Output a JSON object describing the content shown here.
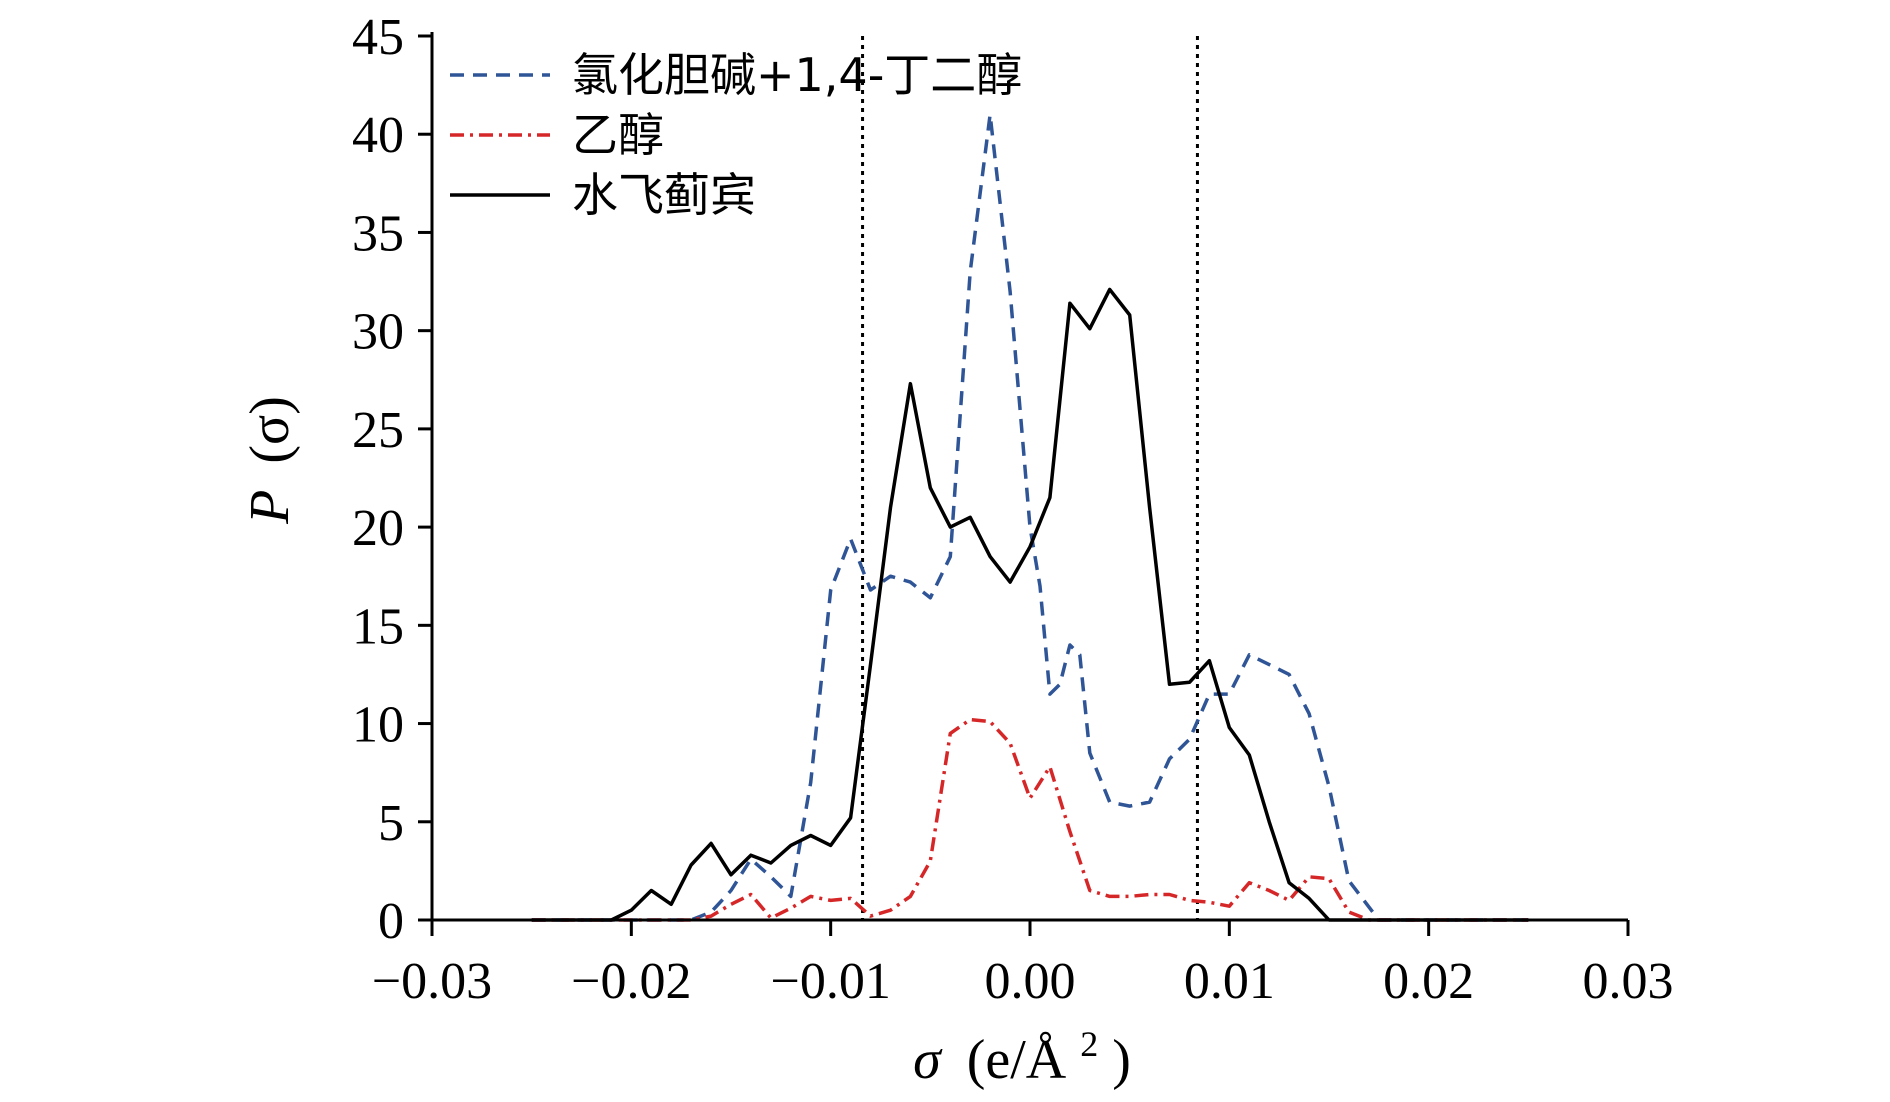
{
  "chart_data": {
    "type": "line",
    "xlabel_main": "σ",
    "xlabel_unit": "(e/Å",
    "xlabel_sup": "2",
    "xlabel_close": ")",
    "ylabel_main": "P",
    "ylabel_paren": "(σ)",
    "xlim": [
      -0.03,
      0.03
    ],
    "ylim": [
      0,
      45
    ],
    "x_ticks": [
      -0.03,
      -0.02,
      -0.01,
      0.0,
      0.01,
      0.02,
      0.03
    ],
    "x_tick_labels": [
      "−0.03",
      "−0.02",
      "−0.01",
      "0.00",
      "0.01",
      "0.02",
      "0.03"
    ],
    "y_ticks": [
      0,
      5,
      10,
      15,
      20,
      25,
      30,
      35,
      40,
      45
    ],
    "y_tick_labels": [
      "0",
      "5",
      "10",
      "15",
      "20",
      "25",
      "30",
      "35",
      "40",
      "45"
    ],
    "vlines": [
      -0.0084,
      0.0084
    ],
    "legend_position": "top-left",
    "series": [
      {
        "name": "氯化胆碱+1,4-丁二醇",
        "color": "#2f5597",
        "style": "dashed",
        "points": [
          [
            -0.025,
            0
          ],
          [
            -0.017,
            0
          ],
          [
            -0.016,
            0.4
          ],
          [
            -0.015,
            1.5
          ],
          [
            -0.014,
            3.1
          ],
          [
            -0.013,
            2.2
          ],
          [
            -0.012,
            1.2
          ],
          [
            -0.011,
            7.0
          ],
          [
            -0.01,
            16.8
          ],
          [
            -0.009,
            19.4
          ],
          [
            -0.008,
            16.8
          ],
          [
            -0.007,
            17.5
          ],
          [
            -0.006,
            17.2
          ],
          [
            -0.005,
            16.4
          ],
          [
            -0.004,
            18.5
          ],
          [
            -0.003,
            33.0
          ],
          [
            -0.002,
            41.0
          ],
          [
            -0.001,
            32.0
          ],
          [
            0.0,
            20.0
          ],
          [
            0.0005,
            17.0
          ],
          [
            0.001,
            11.5
          ],
          [
            0.0015,
            12.0
          ],
          [
            0.002,
            14.0
          ],
          [
            0.0025,
            13.5
          ],
          [
            0.003,
            8.5
          ],
          [
            0.004,
            6.0
          ],
          [
            0.005,
            5.8
          ],
          [
            0.006,
            6.0
          ],
          [
            0.007,
            8.2
          ],
          [
            0.008,
            9.2
          ],
          [
            0.009,
            11.5
          ],
          [
            0.01,
            11.5
          ],
          [
            0.011,
            13.5
          ],
          [
            0.012,
            13.0
          ],
          [
            0.013,
            12.5
          ],
          [
            0.014,
            10.5
          ],
          [
            0.015,
            6.8
          ],
          [
            0.016,
            2.0
          ],
          [
            0.0175,
            0
          ],
          [
            0.025,
            0
          ]
        ]
      },
      {
        "name": "乙醇",
        "color": "#d62728",
        "style": "dashdot",
        "points": [
          [
            -0.025,
            0
          ],
          [
            -0.017,
            0
          ],
          [
            -0.016,
            0.2
          ],
          [
            -0.015,
            0.8
          ],
          [
            -0.014,
            1.3
          ],
          [
            -0.013,
            0.1
          ],
          [
            -0.012,
            0.6
          ],
          [
            -0.011,
            1.2
          ],
          [
            -0.01,
            1.0
          ],
          [
            -0.009,
            1.1
          ],
          [
            -0.008,
            0.2
          ],
          [
            -0.007,
            0.5
          ],
          [
            -0.006,
            1.2
          ],
          [
            -0.005,
            3.0
          ],
          [
            -0.004,
            9.5
          ],
          [
            -0.003,
            10.2
          ],
          [
            -0.002,
            10.1
          ],
          [
            -0.001,
            9.0
          ],
          [
            0.0,
            6.2
          ],
          [
            0.001,
            7.8
          ],
          [
            0.002,
            4.5
          ],
          [
            0.003,
            1.5
          ],
          [
            0.004,
            1.2
          ],
          [
            0.005,
            1.2
          ],
          [
            0.006,
            1.3
          ],
          [
            0.007,
            1.3
          ],
          [
            0.008,
            1.0
          ],
          [
            0.009,
            0.9
          ],
          [
            0.01,
            0.7
          ],
          [
            0.011,
            1.9
          ],
          [
            0.012,
            1.5
          ],
          [
            0.013,
            1.0
          ],
          [
            0.014,
            2.2
          ],
          [
            0.015,
            2.1
          ],
          [
            0.016,
            0.4
          ],
          [
            0.017,
            0
          ],
          [
            0.025,
            0
          ]
        ]
      },
      {
        "name": "水飞蓟宾",
        "color": "#000000",
        "style": "solid",
        "points": [
          [
            -0.025,
            0
          ],
          [
            -0.021,
            0
          ],
          [
            -0.02,
            0.5
          ],
          [
            -0.019,
            1.5
          ],
          [
            -0.018,
            0.8
          ],
          [
            -0.017,
            2.8
          ],
          [
            -0.016,
            3.9
          ],
          [
            -0.015,
            2.3
          ],
          [
            -0.014,
            3.3
          ],
          [
            -0.013,
            2.9
          ],
          [
            -0.012,
            3.8
          ],
          [
            -0.011,
            4.3
          ],
          [
            -0.01,
            3.8
          ],
          [
            -0.009,
            5.2
          ],
          [
            -0.008,
            13.0
          ],
          [
            -0.007,
            21.0
          ],
          [
            -0.006,
            27.3
          ],
          [
            -0.005,
            22.0
          ],
          [
            -0.004,
            20.0
          ],
          [
            -0.003,
            20.5
          ],
          [
            -0.002,
            18.5
          ],
          [
            -0.001,
            17.2
          ],
          [
            0.0,
            19.0
          ],
          [
            0.001,
            21.5
          ],
          [
            0.002,
            31.4
          ],
          [
            0.003,
            30.1
          ],
          [
            0.004,
            32.1
          ],
          [
            0.005,
            30.8
          ],
          [
            0.006,
            21.0
          ],
          [
            0.007,
            12.0
          ],
          [
            0.008,
            12.1
          ],
          [
            0.009,
            13.2
          ],
          [
            0.01,
            9.8
          ],
          [
            0.011,
            8.4
          ],
          [
            0.012,
            5.0
          ],
          [
            0.013,
            1.9
          ],
          [
            0.014,
            1.1
          ],
          [
            0.015,
            0
          ],
          [
            0.025,
            0
          ]
        ]
      }
    ]
  }
}
